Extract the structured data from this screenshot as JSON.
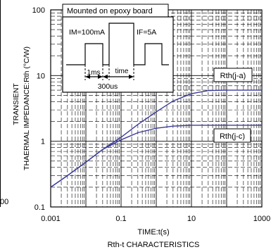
{
  "chart_data": {
    "type": "line",
    "title": "Rth-t CHARACTERISTICS",
    "xlabel": "TIME:t(s)",
    "ylabel_line1": "TRANSIENT",
    "ylabel_line2": "THAERMAL IMPEDANCE:Rth (°C/W)",
    "xscale": "log",
    "yscale": "log",
    "xlim": [
      0.001,
      1000
    ],
    "ylim": [
      0.1,
      100
    ],
    "xticks": [
      {
        "value": 0.001,
        "label": "0.001"
      },
      {
        "value": 0.1,
        "label": "0.1"
      },
      {
        "value": 10,
        "label": "10"
      },
      {
        "value": 1000,
        "label": "1000"
      }
    ],
    "yticks": [
      {
        "value": 0.1,
        "label": "0.1"
      },
      {
        "value": 1,
        "label": "1"
      },
      {
        "value": 10,
        "label": "10"
      },
      {
        "value": 100,
        "label": "100"
      }
    ],
    "grid": true,
    "cutoff_left_label": "00",
    "series": [
      {
        "name": "Rth(j-a)",
        "x": [
          0.001,
          0.003,
          0.01,
          0.03,
          0.1,
          0.3,
          1,
          3,
          10,
          30,
          100,
          1000
        ],
        "y": [
          0.2,
          0.3,
          0.48,
          0.75,
          1.15,
          1.8,
          2.8,
          4.1,
          5.3,
          5.9,
          6.0,
          6.0
        ]
      },
      {
        "name": "Rth(j-c)",
        "x": [
          0.001,
          0.003,
          0.01,
          0.03,
          0.1,
          0.3,
          1,
          3,
          10,
          30,
          100,
          1000
        ],
        "y": [
          0.2,
          0.3,
          0.48,
          0.75,
          1.05,
          1.35,
          1.58,
          1.7,
          1.75,
          1.75,
          1.75,
          1.75
        ]
      }
    ],
    "annotations": {
      "board": "Mounted on epoxy board",
      "im": "IM=100mA",
      "if": "IF=5A",
      "ms": "1ms",
      "time": "time",
      "us": "300us"
    }
  }
}
